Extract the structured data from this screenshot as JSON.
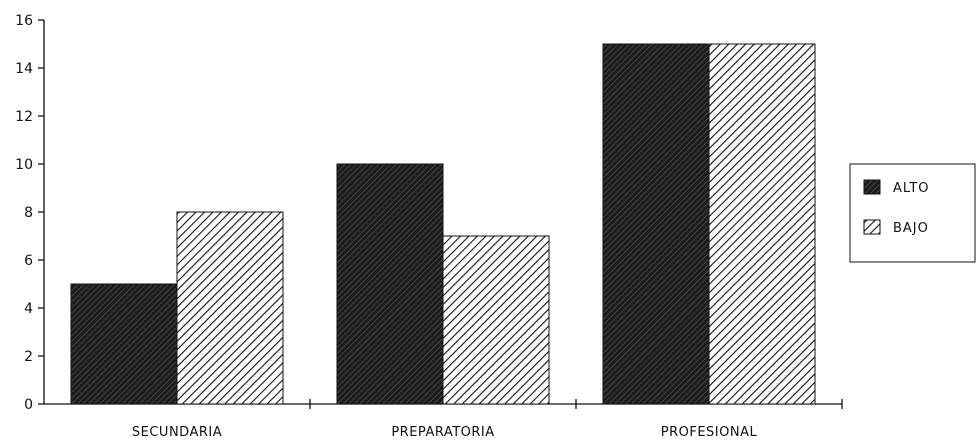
{
  "chart_data": {
    "type": "bar",
    "categories": [
      "SECUNDARIA",
      "PREPARATORIA",
      "PROFESIONAL"
    ],
    "series": [
      {
        "name": "ALTO",
        "values": [
          5,
          10,
          15
        ]
      },
      {
        "name": "BAJO",
        "values": [
          8,
          7,
          15
        ]
      }
    ],
    "ylim": [
      0,
      16
    ],
    "yticks": [
      "0",
      "2",
      "4",
      "6",
      "8",
      "10",
      "12",
      "14",
      "16"
    ],
    "legend": "right",
    "grid": false,
    "colors": {
      "alto": "#1c1c1c",
      "bajo": "#ffffff",
      "ink": "#111111"
    }
  }
}
